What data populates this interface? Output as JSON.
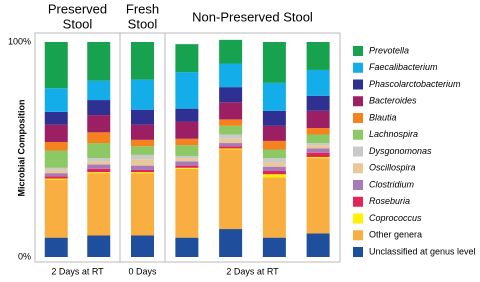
{
  "chart_data": {
    "type": "stacked-bar",
    "y_label": "Microbial Composition",
    "ylim": [
      0,
      100
    ],
    "yticks": [
      {
        "value": 0,
        "label": "0%"
      },
      {
        "value": 100,
        "label": "100%"
      }
    ],
    "groups": [
      {
        "title": [
          "Preserved",
          "Stool"
        ],
        "color": "#1f8fd1",
        "label": "2 Days at RT",
        "categories": [
          null,
          null
        ]
      },
      {
        "title": [
          "Fresh",
          "Stool"
        ],
        "color": "#f7941d",
        "label": "0 Days",
        "categories": [
          null
        ]
      },
      {
        "title": [
          "Non-Preserved Stool"
        ],
        "color": "#000000",
        "label": "2 Days at RT",
        "categories": [
          null,
          null,
          null,
          null
        ]
      }
    ],
    "series": [
      {
        "name": "Prevotella",
        "color": "#17a24f",
        "italic": true,
        "values": [
          21.5,
          18,
          17.5,
          13,
          11,
          19,
          13
        ]
      },
      {
        "name": "Faecalibacterium",
        "color": "#13aeea",
        "italic": true,
        "values": [
          11,
          9,
          14,
          17,
          11,
          13,
          12
        ]
      },
      {
        "name": "Phascolarctobacterium",
        "color": "#2e3192",
        "italic": true,
        "values": [
          6,
          7,
          7,
          6,
          7,
          7,
          7
        ]
      },
      {
        "name": "Bacteroides",
        "color": "#9b1f62",
        "italic": true,
        "values": [
          8,
          8,
          7,
          8,
          8,
          7,
          8
        ]
      },
      {
        "name": "Blautia",
        "color": "#f5821f",
        "italic": true,
        "values": [
          4,
          5,
          3,
          3,
          3,
          4,
          3
        ]
      },
      {
        "name": "Lachnospira",
        "color": "#8cc864",
        "italic": true,
        "values": [
          8,
          7,
          4,
          5,
          4,
          4,
          4
        ]
      },
      {
        "name": "Dysgonomonas",
        "color": "#c9c9c9",
        "italic": true,
        "values": [
          1,
          1.5,
          2,
          1,
          2,
          2,
          1
        ]
      },
      {
        "name": "Oscillospira",
        "color": "#e9c99a",
        "italic": true,
        "values": [
          1.5,
          1.5,
          3,
          1.5,
          2,
          2,
          1.5
        ]
      },
      {
        "name": "Clostridium",
        "color": "#a57cb9",
        "italic": true,
        "values": [
          1.5,
          2,
          2,
          2,
          1.5,
          2,
          2
        ]
      },
      {
        "name": "Roseburia",
        "color": "#e1245a",
        "italic": true,
        "values": [
          1,
          1.5,
          1,
          1,
          1,
          1.5,
          2
        ]
      },
      {
        "name": "Coprococcus",
        "color": "#fff200",
        "italic": true,
        "values": [
          0.5,
          0.5,
          0.5,
          0.5,
          0.5,
          1.5,
          0.5
        ]
      },
      {
        "name": "Other genera",
        "color": "#f9ae42",
        "italic": false,
        "values": [
          27,
          29,
          29,
          32,
          37,
          28,
          35
        ]
      },
      {
        "name": "Unclassified at genus level",
        "color": "#1f4f9c",
        "italic": false,
        "values": [
          9,
          10,
          10,
          9,
          13,
          9,
          11
        ]
      }
    ]
  }
}
